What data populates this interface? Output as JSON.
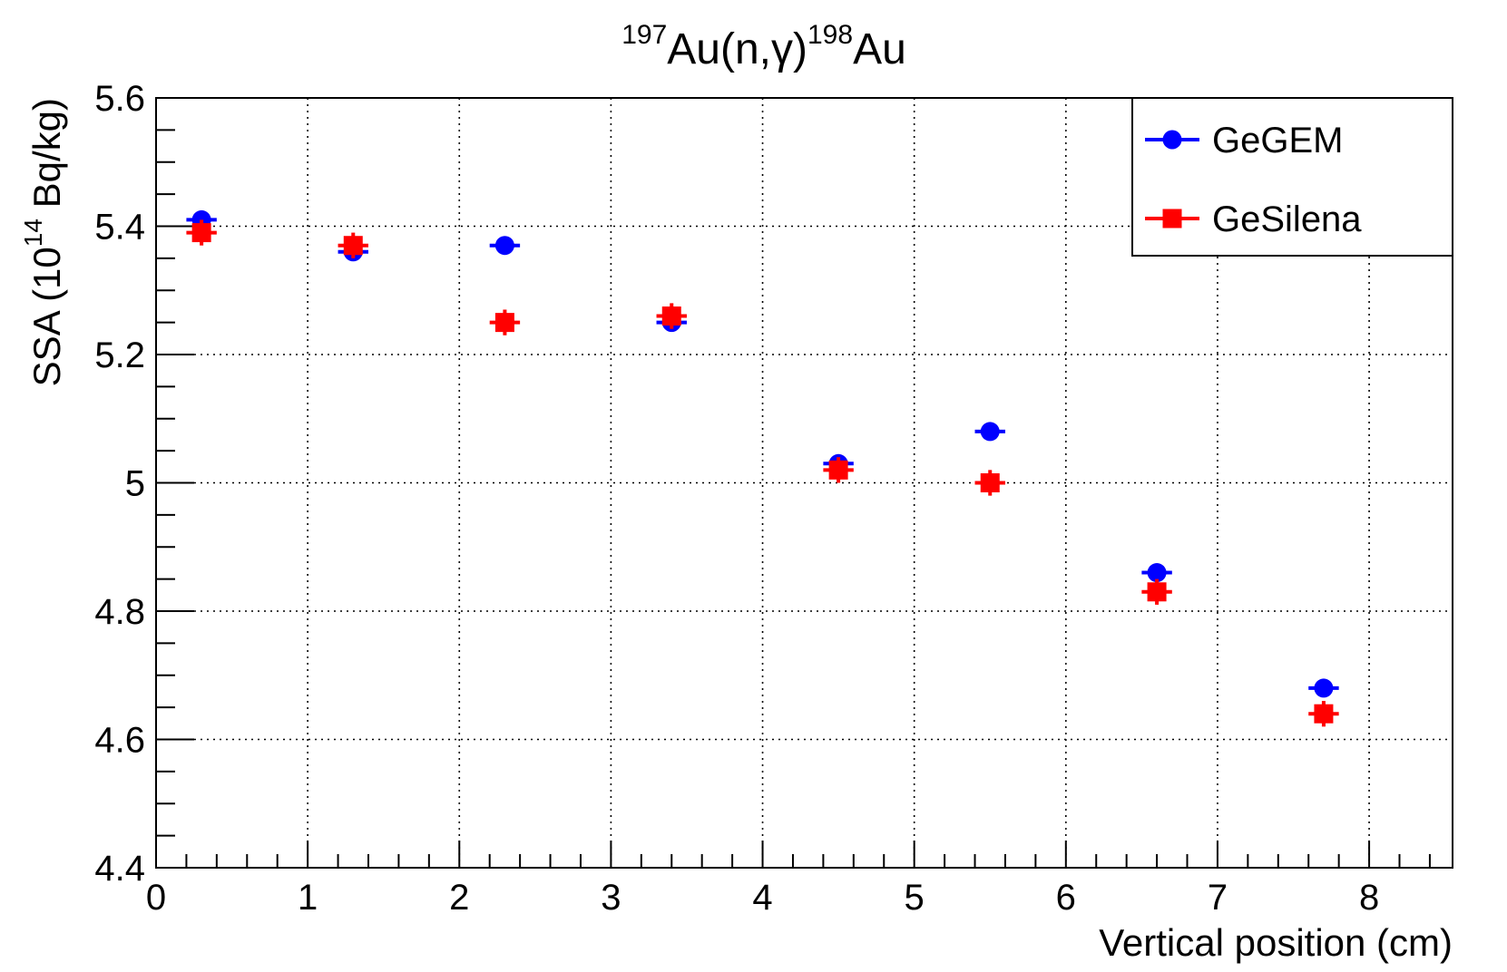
{
  "chart_data": {
    "type": "scatter",
    "title": {
      "parts": [
        {
          "sup": "197"
        },
        {
          "text": "Au(n,"
        },
        {
          "greek": "γ"
        },
        {
          "text": ")"
        },
        {
          "sup": "198"
        },
        {
          "text": "Au"
        }
      ]
    },
    "xlabel": "Vertical position (cm)",
    "ylabel": {
      "parts": [
        {
          "text": "SSA (10"
        },
        {
          "sup": "14"
        },
        {
          "text": " Bq/kg)"
        }
      ]
    },
    "xlim": [
      0,
      8.55
    ],
    "ylim": [
      4.4,
      5.6
    ],
    "x_ticks": [
      0,
      1,
      2,
      3,
      4,
      5,
      6,
      7,
      8
    ],
    "y_ticks": [
      4.4,
      4.6,
      4.8,
      5,
      5.2,
      5.4,
      5.6
    ],
    "x_tick_labels": [
      "0",
      "1",
      "2",
      "3",
      "4",
      "5",
      "6",
      "7",
      "8"
    ],
    "y_tick_labels": [
      "4.4",
      "4.6",
      "4.8",
      "5",
      "5.2",
      "5.4",
      "5.6"
    ],
    "grid": true,
    "legend_position": "top-right",
    "series": [
      {
        "name": "GeGEM",
        "color": "#0000ff",
        "marker": "circle",
        "x": [
          0.3,
          1.3,
          2.3,
          3.4,
          4.5,
          5.5,
          6.6,
          7.7
        ],
        "y": [
          5.41,
          5.36,
          5.37,
          5.25,
          5.03,
          5.08,
          4.86,
          4.68
        ],
        "x_err": [
          0.1,
          0.1,
          0.1,
          0.1,
          0.1,
          0.1,
          0.1,
          0.1
        ],
        "y_err": [
          0,
          0,
          0,
          0,
          0,
          0,
          0,
          0
        ]
      },
      {
        "name": "GeSilena",
        "color": "#ff0000",
        "marker": "square",
        "x": [
          0.3,
          1.3,
          2.3,
          3.4,
          4.5,
          5.5,
          6.6,
          7.7
        ],
        "y": [
          5.39,
          5.37,
          5.25,
          5.26,
          5.02,
          5.0,
          4.83,
          4.64
        ],
        "x_err": [
          0.1,
          0.1,
          0.1,
          0.1,
          0.1,
          0.1,
          0.1,
          0.1
        ],
        "y_err": [
          0.02,
          0.02,
          0.02,
          0.02,
          0.02,
          0.02,
          0.02,
          0.02
        ]
      }
    ]
  }
}
